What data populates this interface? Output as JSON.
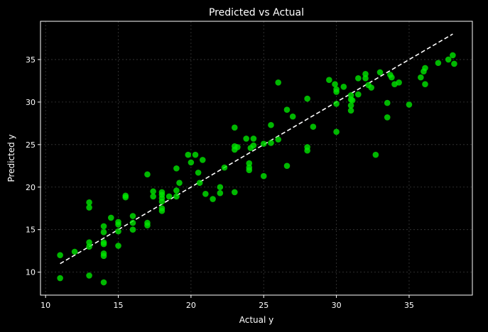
{
  "colors": {
    "background": "#000000",
    "axes": "#ffffff",
    "grid": "#3a3a3a",
    "points": "#00e600",
    "fit_line": "#ffffff"
  },
  "chart_data": {
    "type": "scatter",
    "title": "Predicted vs Actual",
    "xlabel": "Actual y",
    "ylabel": "Predicted y",
    "xlim": [
      9.65,
      39.35
    ],
    "ylim": [
      7.3,
      39.5
    ],
    "xticks": [
      10,
      15,
      20,
      25,
      30,
      35
    ],
    "yticks": [
      10,
      15,
      20,
      25,
      30,
      35
    ],
    "grid": true,
    "reference_line": {
      "name": "y = x",
      "x": [
        11,
        38
      ],
      "y": [
        11,
        38
      ],
      "style": "dashed"
    },
    "series": [
      {
        "name": "predictions",
        "points": [
          [
            11,
            12.0
          ],
          [
            11,
            9.3
          ],
          [
            12,
            12.4
          ],
          [
            13,
            13.0
          ],
          [
            13,
            13.5
          ],
          [
            13,
            17.6
          ],
          [
            13,
            18.2
          ],
          [
            13,
            9.6
          ],
          [
            14,
            15.4
          ],
          [
            14,
            14.7
          ],
          [
            14,
            13.5
          ],
          [
            14,
            13.3
          ],
          [
            14,
            12.2
          ],
          [
            14,
            11.9
          ],
          [
            14,
            8.8
          ],
          [
            14.5,
            16.4
          ],
          [
            15,
            15.9
          ],
          [
            15,
            15.6
          ],
          [
            15,
            14.8
          ],
          [
            15,
            13.1
          ],
          [
            15.5,
            19.0
          ],
          [
            15.5,
            18.8
          ],
          [
            16,
            16.6
          ],
          [
            16,
            15.8
          ],
          [
            16,
            15.0
          ],
          [
            17,
            21.5
          ],
          [
            17,
            15.8
          ],
          [
            17,
            15.5
          ],
          [
            17.4,
            19.5
          ],
          [
            17.4,
            18.9
          ],
          [
            18,
            19.4
          ],
          [
            18,
            19.1
          ],
          [
            18,
            18.7
          ],
          [
            18,
            18.3
          ],
          [
            18,
            17.5
          ],
          [
            18,
            17.2
          ],
          [
            18.5,
            18.9
          ],
          [
            19,
            22.2
          ],
          [
            19,
            19.6
          ],
          [
            19,
            18.9
          ],
          [
            19.2,
            20.5
          ],
          [
            19.8,
            23.8
          ],
          [
            20,
            22.9
          ],
          [
            20.3,
            23.8
          ],
          [
            20.5,
            21.7
          ],
          [
            20.6,
            20.5
          ],
          [
            20.8,
            23.2
          ],
          [
            21,
            19.2
          ],
          [
            21.5,
            18.6
          ],
          [
            22,
            20.0
          ],
          [
            22,
            19.3
          ],
          [
            22.3,
            22.3
          ],
          [
            23,
            27.0
          ],
          [
            23,
            24.8
          ],
          [
            23,
            24.4
          ],
          [
            23,
            19.4
          ],
          [
            23.2,
            24.7
          ],
          [
            23.8,
            25.7
          ],
          [
            24,
            22.8
          ],
          [
            24,
            22.3
          ],
          [
            24,
            22.0
          ],
          [
            24.1,
            24.6
          ],
          [
            24.3,
            25.7
          ],
          [
            24.3,
            24.9
          ],
          [
            25,
            25.1
          ],
          [
            25,
            21.3
          ],
          [
            25.5,
            27.3
          ],
          [
            25.5,
            25.2
          ],
          [
            26,
            32.3
          ],
          [
            26,
            25.6
          ],
          [
            26.6,
            29.1
          ],
          [
            26.6,
            22.5
          ],
          [
            27,
            28.3
          ],
          [
            28,
            30.4
          ],
          [
            28,
            24.7
          ],
          [
            28,
            24.3
          ],
          [
            28.4,
            27.1
          ],
          [
            29.5,
            32.6
          ],
          [
            29.9,
            32.1
          ],
          [
            30,
            31.5
          ],
          [
            30,
            31.2
          ],
          [
            30,
            29.8
          ],
          [
            30,
            26.5
          ],
          [
            30.5,
            31.8
          ],
          [
            31,
            30.8
          ],
          [
            31,
            30.3
          ],
          [
            31,
            29.6
          ],
          [
            31,
            29.0
          ],
          [
            31.1,
            30.2
          ],
          [
            31.5,
            32.8
          ],
          [
            31.5,
            30.9
          ],
          [
            32,
            33.3
          ],
          [
            32,
            32.8
          ],
          [
            32.2,
            32.0
          ],
          [
            32.4,
            31.7
          ],
          [
            32.7,
            23.8
          ],
          [
            33,
            33.5
          ],
          [
            33.5,
            29.9
          ],
          [
            33.5,
            28.2
          ],
          [
            33.7,
            33.2
          ],
          [
            33.8,
            32.9
          ],
          [
            34,
            32.1
          ],
          [
            34.3,
            32.3
          ],
          [
            35,
            29.7
          ],
          [
            35.8,
            32.9
          ],
          [
            36,
            33.6
          ],
          [
            36.1,
            34.0
          ],
          [
            36.1,
            32.1
          ],
          [
            37,
            34.6
          ],
          [
            37.7,
            35.0
          ],
          [
            38,
            35.5
          ],
          [
            38.1,
            34.5
          ]
        ]
      }
    ]
  }
}
